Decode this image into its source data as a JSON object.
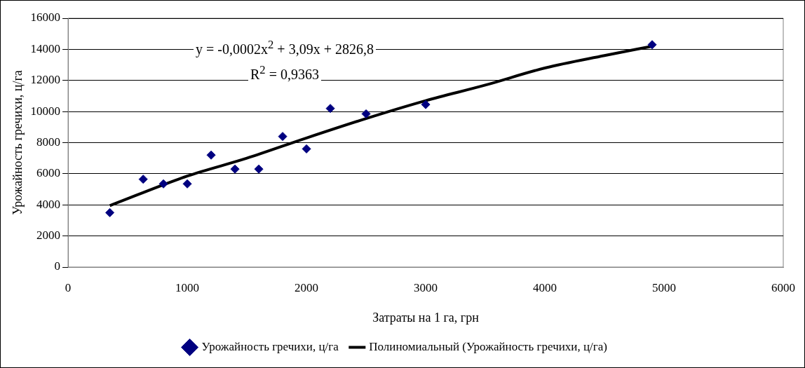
{
  "chart_data": {
    "type": "scatter",
    "xlabel": "Затраты на 1 га, грн",
    "ylabel": "Урожайность гречихи, ц/га",
    "xlim": [
      0,
      6000
    ],
    "xticks": [
      0,
      1000,
      2000,
      3000,
      4000,
      5000,
      6000
    ],
    "ylim": [
      0,
      16000
    ],
    "yticks": [
      0,
      2000,
      4000,
      6000,
      8000,
      10000,
      12000,
      14000,
      16000
    ],
    "grid": "y",
    "legend": "bottom",
    "marker": "diamond",
    "annotations": [
      "y = -0,0002x$^{2}$ + 3,09x + 2826,8",
      "R$^{2}$ = 0,9363"
    ],
    "series": [
      {
        "name": "Урожайность гречихи, ц/га",
        "color": "#000080",
        "x": [
          350,
          630,
          800,
          1000,
          1200,
          1400,
          1600,
          1800,
          2000,
          2200,
          2500,
          3000,
          4900
        ],
        "values": [
          3500,
          5650,
          5350,
          5350,
          7200,
          6300,
          6300,
          8400,
          7600,
          10200,
          9850,
          10450,
          14300
        ]
      },
      {
        "name": "Полиномиальный (Урожайность гречихи, ц/га)",
        "type": "line",
        "color": "#000000",
        "marker": "none",
        "x": [
          350,
          1000,
          1500,
          2000,
          2500,
          3000,
          3500,
          4000,
          4500,
          4900
        ],
        "values": [
          3950,
          5850,
          7000,
          8300,
          9550,
          10700,
          11700,
          12800,
          13600,
          14200
        ]
      }
    ]
  }
}
